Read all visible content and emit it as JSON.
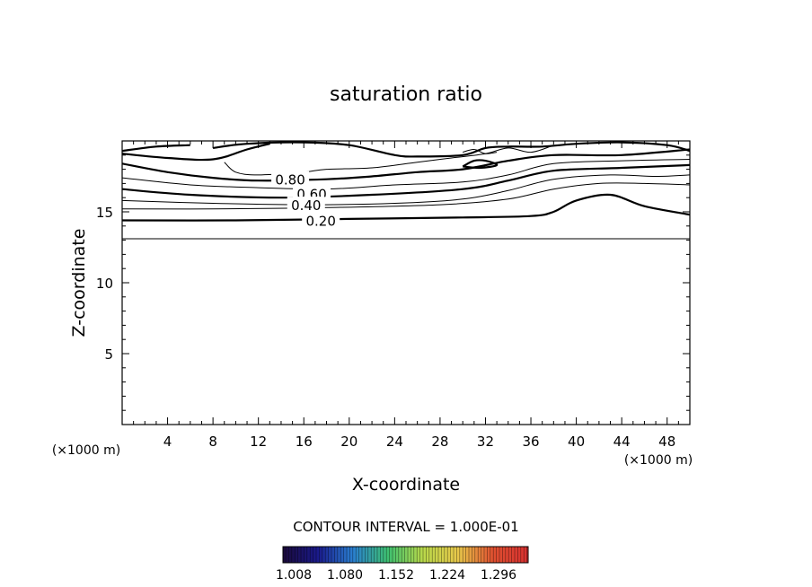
{
  "chart_data": {
    "type": "contour",
    "title": "saturation ratio",
    "xlabel": "X-coordinate",
    "ylabel": "Z-coordinate",
    "x_unit": "(×1000 m)",
    "y_unit": "(×1000 m)",
    "xlim": [
      0,
      50
    ],
    "ylim": [
      0,
      20
    ],
    "x_ticks": [
      4,
      8,
      12,
      16,
      20,
      24,
      28,
      32,
      36,
      40,
      44,
      48
    ],
    "y_ticks": [
      5,
      10,
      15
    ],
    "contour_interval_text": "CONTOUR INTERVAL = 1.000E-01",
    "contour_labels": [
      {
        "text": "0.80",
        "x": 14.8,
        "z": 17.3
      },
      {
        "text": "0.60",
        "x": 16.7,
        "z": 16.3
      },
      {
        "text": "0.40",
        "x": 16.2,
        "z": 15.5
      },
      {
        "text": "0.20",
        "x": 17.5,
        "z": 14.4
      }
    ],
    "colorbar": {
      "tick_labels": [
        "1.008",
        "1.080",
        "1.152",
        "1.224",
        "1.296"
      ],
      "colors": [
        "#1a0a3a",
        "#1a1a8c",
        "#2a7fd0",
        "#3ec070",
        "#b9d94a",
        "#e8c84a",
        "#e05030",
        "#d83030"
      ]
    },
    "contours": [
      {
        "level": 0.2,
        "bold": true,
        "points": [
          [
            0,
            14.4
          ],
          [
            10,
            14.4
          ],
          [
            20,
            14.5
          ],
          [
            30,
            14.6
          ],
          [
            36,
            14.7
          ],
          [
            38,
            15.0
          ],
          [
            40,
            15.8
          ],
          [
            43,
            16.2
          ],
          [
            46,
            15.4
          ],
          [
            50,
            14.8
          ]
        ]
      },
      {
        "level": 0.3,
        "bold": false,
        "points": [
          [
            0,
            15.2
          ],
          [
            8,
            15.2
          ],
          [
            18,
            15.3
          ],
          [
            28,
            15.5
          ],
          [
            34,
            15.9
          ],
          [
            38,
            16.6
          ],
          [
            42,
            17.0
          ],
          [
            46,
            17.0
          ],
          [
            50,
            16.9
          ]
        ]
      },
      {
        "level": 0.4,
        "bold": false,
        "points": [
          [
            0,
            15.8
          ],
          [
            8,
            15.6
          ],
          [
            16,
            15.5
          ],
          [
            24,
            15.6
          ],
          [
            30,
            15.9
          ],
          [
            34,
            16.5
          ],
          [
            38,
            17.3
          ],
          [
            43,
            17.6
          ],
          [
            47,
            17.5
          ],
          [
            50,
            17.6
          ]
        ]
      },
      {
        "level": 0.5,
        "bold": true,
        "points": [
          [
            0,
            16.6
          ],
          [
            6,
            16.2
          ],
          [
            14,
            16.0
          ],
          [
            22,
            16.2
          ],
          [
            30,
            16.6
          ],
          [
            34,
            17.2
          ],
          [
            38,
            17.9
          ],
          [
            44,
            18.1
          ],
          [
            50,
            18.3
          ]
        ]
      },
      {
        "level": 0.6,
        "bold": false,
        "points": [
          [
            0,
            17.4
          ],
          [
            6,
            16.9
          ],
          [
            12,
            16.7
          ],
          [
            18,
            16.6
          ],
          [
            24,
            16.9
          ],
          [
            30,
            17.1
          ],
          [
            34,
            17.6
          ],
          [
            38,
            18.4
          ],
          [
            44,
            18.6
          ],
          [
            50,
            18.7
          ]
        ]
      },
      {
        "level": 0.7,
        "bold": true,
        "points": [
          [
            0,
            18.4
          ],
          [
            4,
            17.8
          ],
          [
            8,
            17.4
          ],
          [
            12,
            17.2
          ],
          [
            18,
            17.3
          ],
          [
            22,
            17.5
          ],
          [
            26,
            17.8
          ],
          [
            30,
            18.0
          ],
          [
            34,
            18.6
          ],
          [
            38,
            19.0
          ],
          [
            44,
            19.0
          ],
          [
            50,
            19.4
          ]
        ]
      },
      {
        "level": 0.8,
        "bold": true,
        "points": [
          [
            0,
            19.1
          ],
          [
            4,
            18.8
          ],
          [
            8,
            18.7
          ],
          [
            11,
            19.4
          ],
          [
            13,
            19.8
          ]
        ]
      },
      {
        "level": 0.9,
        "bold": true,
        "points": [
          [
            0,
            19.3
          ],
          [
            3,
            19.6
          ],
          [
            6,
            19.7
          ]
        ]
      }
    ],
    "closed_contours": [
      {
        "level": 0.9,
        "bold": true,
        "points": [
          [
            8,
            19.5
          ],
          [
            11,
            19.8
          ],
          [
            16,
            19.9
          ],
          [
            20,
            19.7
          ],
          [
            24,
            19.0
          ],
          [
            26,
            18.9
          ],
          [
            30,
            19.0
          ],
          [
            32,
            19.5
          ],
          [
            34,
            19.6
          ],
          [
            37,
            19.6
          ],
          [
            40,
            19.8
          ],
          [
            44,
            19.9
          ],
          [
            48,
            19.7
          ],
          [
            50,
            19.3
          ]
        ]
      },
      {
        "level": 0.8,
        "bold": false,
        "points": [
          [
            9,
            18.5
          ],
          [
            10,
            17.8
          ],
          [
            12,
            17.6
          ],
          [
            16,
            17.8
          ],
          [
            18,
            18.0
          ],
          [
            22,
            18.1
          ],
          [
            26,
            18.5
          ],
          [
            29,
            18.8
          ],
          [
            32,
            19.1
          ],
          [
            34,
            19.5
          ],
          [
            36,
            19.2
          ],
          [
            38,
            19.7
          ]
        ]
      },
      {
        "level": 0.85,
        "bold": false,
        "points": [
          [
            30,
            19.2
          ],
          [
            31,
            19.4
          ],
          [
            32,
            19.1
          ],
          [
            33,
            19.2
          ]
        ]
      },
      {
        "level": 0.95,
        "bold": true,
        "points": [
          [
            30,
            18.2
          ],
          [
            31,
            18.6
          ],
          [
            32,
            18.6
          ],
          [
            33,
            18.3
          ],
          [
            31.5,
            18.1
          ],
          [
            30,
            18.2
          ]
        ]
      }
    ],
    "flat_lines": [
      {
        "level": 0.0,
        "z": 13.1
      }
    ]
  }
}
